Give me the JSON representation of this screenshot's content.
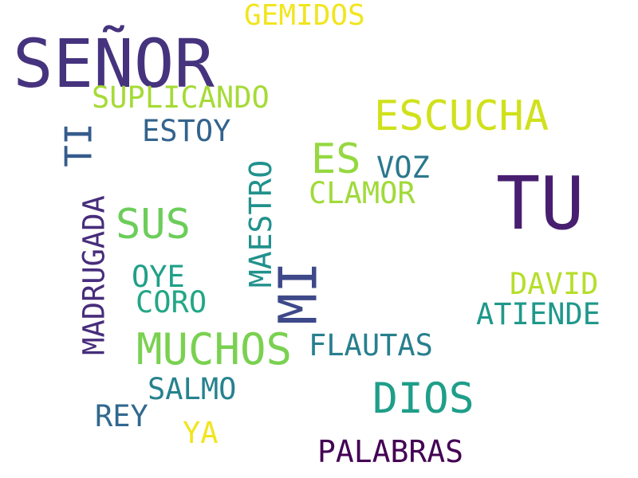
{
  "words": {
    "gemidos": {
      "text": "GEMIDOS",
      "color": "#f1e51d"
    },
    "senor": {
      "text": "SEÑOR",
      "color": "#46337e"
    },
    "suplicando": {
      "text": "SUPLICANDO",
      "color": "#a5db36"
    },
    "escucha": {
      "text": "ESCUCHA",
      "color": "#d0e11c"
    },
    "ti": {
      "text": "TI",
      "color": "#365c8d"
    },
    "estoy": {
      "text": "ESTOY",
      "color": "#33638d"
    },
    "es": {
      "text": "ES",
      "color": "#95d840"
    },
    "voz": {
      "text": "VOZ",
      "color": "#2a788e"
    },
    "tu": {
      "text": "TU",
      "color": "#481f70"
    },
    "clamor": {
      "text": "CLAMOR",
      "color": "#a0da39"
    },
    "maestro": {
      "text": "MAESTRO",
      "color": "#21918c"
    },
    "madrugada": {
      "text": "MADRUGADA",
      "color": "#472d7b"
    },
    "sus": {
      "text": "SUS",
      "color": "#6ccd5a"
    },
    "mi": {
      "text": "MI",
      "color": "#3e4989"
    },
    "oye": {
      "text": "OYE",
      "color": "#1fa088"
    },
    "coro": {
      "text": "CORO",
      "color": "#22a785"
    },
    "david": {
      "text": "DAVID",
      "color": "#b5de2b"
    },
    "atiende": {
      "text": "ATIENDE",
      "color": "#1f988b"
    },
    "muchos": {
      "text": "MUCHOS",
      "color": "#7ad151"
    },
    "flautas": {
      "text": "FLAUTAS",
      "color": "#277f8e"
    },
    "dios": {
      "text": "DIOS",
      "color": "#1f9e89"
    },
    "salmo": {
      "text": "SALMO",
      "color": "#26828e"
    },
    "rey": {
      "text": "REY",
      "color": "#31688e"
    },
    "ya": {
      "text": "YA",
      "color": "#f1e51d"
    },
    "palabras": {
      "text": "PALABRAS",
      "color": "#440154"
    }
  }
}
